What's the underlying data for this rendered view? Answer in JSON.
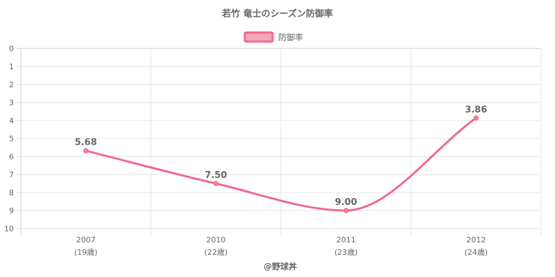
{
  "chart_data": {
    "type": "line",
    "title": "若竹 竜士のシーズン防御率",
    "legend": {
      "position": "top",
      "label": "防御率"
    },
    "categories": [
      "2007",
      "2010",
      "2011",
      "2012"
    ],
    "category_sublabels": [
      "(19歳)",
      "(22歳)",
      "(23歳)",
      "(24歳)"
    ],
    "series": [
      {
        "name": "防御率",
        "values": [
          5.68,
          7.5,
          9.0,
          3.86
        ],
        "labels": [
          "5.68",
          "7.50",
          "9.00",
          "3.86"
        ]
      }
    ],
    "y_axis": {
      "reversed": true,
      "range": [
        0,
        10
      ],
      "ticks": [
        "0",
        "1",
        "2",
        "3",
        "4",
        "5",
        "6",
        "7",
        "8",
        "9",
        "10"
      ]
    },
    "grid": true,
    "credit": "@野球丼",
    "colors": {
      "line": "#f06a8a",
      "point": "#f48aa6",
      "legend_fill": "#f7a7ba",
      "grid": "#e5e5e5",
      "axis": "#cccccc",
      "text": "#666666"
    }
  }
}
